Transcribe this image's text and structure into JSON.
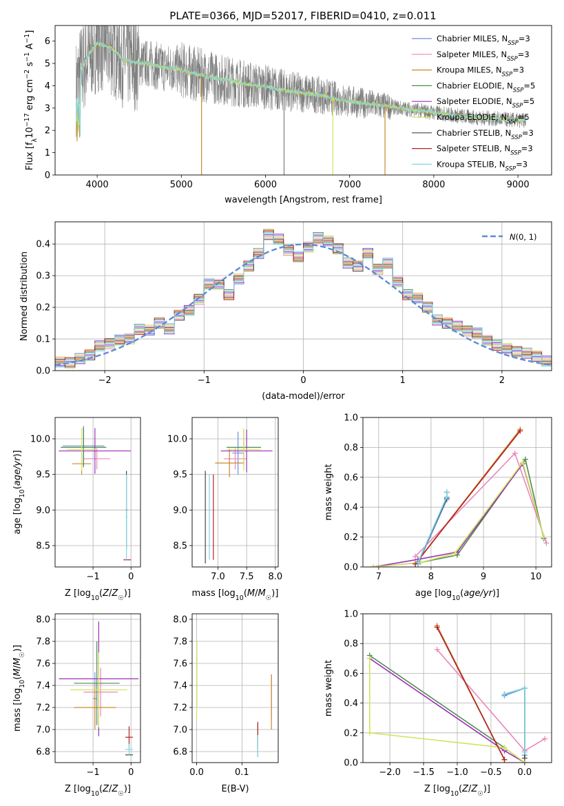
{
  "figure": {
    "title": "PLATE=0366, MJD=52017, FIBERID=0410, z=0.011",
    "series_colors": {
      "Chabrier MILES": "#6a8fd6",
      "Salpeter MILES": "#e888b9",
      "Kroupa MILES": "#c78a2a",
      "Chabrier ELODIE": "#4f8a4f",
      "Salpeter ELODIE": "#9b30b6",
      "Kroupa ELODIE": "#d4e35a",
      "Chabrier STELIB": "#444444",
      "Salpeter STELIB": "#b22222",
      "Kroupa STELIB": "#7fd6e6",
      "data": "#7f7f7f",
      "normal": "#5b8bd6"
    }
  },
  "chart_data": [
    {
      "id": "spectrum",
      "type": "line",
      "title": "PLATE=0366, MJD=52017, FIBERID=0410, z=0.011",
      "xlabel": "wavelength [Angstrom, rest frame]",
      "ylabel_parts": {
        "pre": "Flux [f",
        "sub": "λ",
        "mid": "10",
        "sup1": "−17",
        "post": " erg cm",
        "sup2": "−2",
        "post2": " s",
        "sup3": "−1",
        "post3": " A",
        "sup4": "−1",
        "end": "]"
      },
      "xlim": [
        3500,
        9400
      ],
      "ylim": [
        0,
        6.7
      ],
      "xticks": [
        4000,
        5000,
        6000,
        7000,
        8000,
        9000
      ],
      "yticks": [
        0,
        1,
        2,
        3,
        4,
        5,
        6
      ],
      "legend_position": "top-right",
      "legend": [
        {
          "name": "Chabrier MILES",
          "nssp": "3"
        },
        {
          "name": "Salpeter MILES",
          "nssp": "3"
        },
        {
          "name": "Kroupa MILES",
          "nssp": "3"
        },
        {
          "name": "Chabrier ELODIE",
          "nssp": "5"
        },
        {
          "name": "Salpeter ELODIE",
          "nssp": "5"
        },
        {
          "name": "Kroupa ELODIE",
          "nssp": "5"
        },
        {
          "name": "Chabrier STELIB",
          "nssp": "3"
        },
        {
          "name": "Salpeter STELIB",
          "nssp": "3"
        },
        {
          "name": "Kroupa STELIB",
          "nssp": "3"
        }
      ],
      "continuum": {
        "wavelength": [
          3750,
          3800,
          3900,
          4000,
          4100,
          4200,
          4300,
          4400,
          4500,
          4600,
          4700,
          4800,
          4900,
          5000,
          5200,
          5400,
          5600,
          5800,
          6000,
          6200,
          6400,
          6600,
          6800,
          7000,
          7200,
          7400,
          7600,
          7800,
          8000,
          8200,
          8400,
          8600,
          8800,
          9000,
          9100
        ],
        "flux": [
          3.9,
          4.6,
          5.4,
          5.9,
          5.8,
          5.6,
          5.2,
          5.1,
          5.0,
          5.0,
          4.9,
          4.8,
          4.8,
          4.7,
          4.5,
          4.35,
          4.2,
          4.05,
          3.95,
          3.8,
          3.7,
          3.6,
          3.45,
          3.3,
          3.2,
          3.1,
          3.0,
          2.9,
          2.8,
          2.7,
          2.6,
          2.55,
          2.5,
          2.45,
          2.45
        ]
      },
      "model_dips_to_zero": [
        5240,
        6800,
        7420
      ]
    },
    {
      "id": "residuals",
      "type": "histogram",
      "xlabel": "(data-model)/error",
      "ylabel": "Normed distribution",
      "xlim": [
        -2.5,
        2.5
      ],
      "ylim": [
        0,
        0.47
      ],
      "xticks": [
        -2,
        -1,
        0,
        1,
        2
      ],
      "yticks": [
        0.0,
        0.1,
        0.2,
        0.3,
        0.4
      ],
      "legend": "N(0,1)",
      "legend_position": "top-right",
      "bins": [
        -2.5,
        -2.4,
        -2.3,
        -2.2,
        -2.1,
        -2.0,
        -1.9,
        -1.8,
        -1.7,
        -1.6,
        -1.5,
        -1.4,
        -1.3,
        -1.2,
        -1.1,
        -1.0,
        -0.9,
        -0.8,
        -0.7,
        -0.6,
        -0.5,
        -0.4,
        -0.3,
        -0.2,
        -0.1,
        0.0,
        0.1,
        0.2,
        0.3,
        0.4,
        0.5,
        0.6,
        0.7,
        0.8,
        0.9,
        1.0,
        1.1,
        1.2,
        1.3,
        1.4,
        1.5,
        1.6,
        1.7,
        1.8,
        1.9,
        2.0,
        2.1,
        2.2,
        2.3,
        2.4,
        2.5
      ],
      "density": [
        0.028,
        0.025,
        0.038,
        0.05,
        0.078,
        0.085,
        0.098,
        0.1,
        0.13,
        0.128,
        0.15,
        0.132,
        0.175,
        0.19,
        0.225,
        0.275,
        0.272,
        0.24,
        0.29,
        0.33,
        0.37,
        0.43,
        0.415,
        0.38,
        0.36,
        0.39,
        0.42,
        0.41,
        0.385,
        0.34,
        0.33,
        0.37,
        0.32,
        0.34,
        0.28,
        0.24,
        0.23,
        0.2,
        0.16,
        0.15,
        0.14,
        0.125,
        0.12,
        0.095,
        0.08,
        0.07,
        0.06,
        0.055,
        0.045,
        0.03
      ],
      "normal_curve": "N(0,1)"
    },
    {
      "id": "age-vs-Z",
      "type": "scatter",
      "xlabel": "Z [log10(Z/Z☉)]",
      "ylabel": "age  [log10(age/yr)]",
      "xlim": [
        -2.0,
        0.25
      ],
      "ylim": [
        8.2,
        10.3
      ],
      "xticks": [
        -1,
        0
      ],
      "yticks": [
        8.5,
        9.0,
        9.5,
        10.0
      ],
      "points": [
        {
          "x": -1.25,
          "y": 9.9,
          "xerr": 0.55,
          "yerr": 0.28,
          "series": "Chabrier MILES"
        },
        {
          "x": -0.9,
          "y": 9.72,
          "xerr": 0.35,
          "yerr": 0.15,
          "series": "Salpeter MILES"
        },
        {
          "x": -1.3,
          "y": 9.65,
          "xerr": 0.25,
          "yerr": 0.15,
          "series": "Kroupa MILES"
        },
        {
          "x": -1.25,
          "y": 9.88,
          "xerr": 0.6,
          "yerr": 0.28,
          "series": "Chabrier ELODIE"
        },
        {
          "x": -0.95,
          "y": 9.83,
          "xerr": 0.95,
          "yerr": 0.32,
          "series": "Salpeter ELODIE"
        },
        {
          "x": -1.3,
          "y": 9.85,
          "xerr": 0.4,
          "yerr": 0.3,
          "series": "Kroupa ELODIE"
        },
        {
          "x": -0.12,
          "y": 9.0,
          "xerr": 0.02,
          "yerr": 0.55,
          "series": "Chabrier STELIB"
        },
        {
          "x": -0.1,
          "y": 8.3,
          "xerr": 0.1,
          "yerr": 0.0,
          "series": "Salpeter STELIB"
        },
        {
          "x": -0.12,
          "y": 8.9,
          "xerr": 0.02,
          "yerr": 0.6,
          "series": "Kroupa STELIB"
        }
      ]
    },
    {
      "id": "age-vs-mass",
      "type": "scatter",
      "xlabel": "mass [log10(M/M☉)]",
      "ylabel": "",
      "xlim": [
        6.55,
        8.05
      ],
      "ylim": [
        8.2,
        10.3
      ],
      "xticks": [
        7.0,
        7.5,
        8.0
      ],
      "yticks": [
        8.5,
        9.0,
        9.5,
        10.0
      ],
      "points": [
        {
          "x": 7.35,
          "y": 9.8,
          "xerr": 0.1,
          "yerr": 0.3,
          "series": "Chabrier MILES"
        },
        {
          "x": 7.3,
          "y": 9.72,
          "xerr": 0.2,
          "yerr": 0.15,
          "series": "Salpeter MILES"
        },
        {
          "x": 7.2,
          "y": 9.66,
          "xerr": 0.25,
          "yerr": 0.2,
          "series": "Kroupa MILES"
        },
        {
          "x": 7.45,
          "y": 9.88,
          "xerr": 0.3,
          "yerr": 0.25,
          "series": "Chabrier ELODIE"
        },
        {
          "x": 7.5,
          "y": 9.83,
          "xerr": 0.45,
          "yerr": 0.3,
          "series": "Salpeter ELODIE"
        },
        {
          "x": 7.45,
          "y": 9.85,
          "xerr": 0.3,
          "yerr": 0.3,
          "series": "Kroupa ELODIE"
        },
        {
          "x": 6.78,
          "y": 8.9,
          "xerr": 0.0,
          "yerr": 0.65,
          "series": "Chabrier STELIB"
        },
        {
          "x": 6.92,
          "y": 8.9,
          "xerr": 0.0,
          "yerr": 0.6,
          "series": "Salpeter STELIB"
        },
        {
          "x": 6.85,
          "y": 8.9,
          "xerr": 0.0,
          "yerr": 0.6,
          "series": "Kroupa STELIB"
        }
      ]
    },
    {
      "id": "weight-vs-age",
      "type": "line",
      "xlabel": "age  [log10(age/yr)]",
      "ylabel": "mass weight",
      "xlim": [
        6.7,
        10.3
      ],
      "ylim": [
        0.0,
        1.0
      ],
      "xticks": [
        7,
        8,
        9,
        10
      ],
      "yticks": [
        0.0,
        0.2,
        0.4,
        0.6,
        0.8,
        1.0
      ],
      "grid": true,
      "series": [
        {
          "name": "Chabrier MILES",
          "x": [
            7.75,
            8.3,
            8.3
          ],
          "y": [
            0.02,
            0.45,
            0.5
          ]
        },
        {
          "name": "Salpeter MILES",
          "x": [
            7.7,
            9.6,
            10.2
          ],
          "y": [
            0.07,
            0.76,
            0.16
          ]
        },
        {
          "name": "Kroupa MILES",
          "x": [
            7.7,
            9.7
          ],
          "y": [
            0.02,
            0.92
          ]
        },
        {
          "name": "Chabrier ELODIE",
          "x": [
            6.9,
            7.8,
            8.5,
            9.8,
            10.15
          ],
          "y": [
            0.0,
            0.03,
            0.08,
            0.72,
            0.19
          ]
        },
        {
          "name": "Salpeter ELODIE",
          "x": [
            6.9,
            7.75,
            8.5,
            9.75,
            10.15
          ],
          "y": [
            0.0,
            0.05,
            0.1,
            0.69,
            0.2
          ]
        },
        {
          "name": "Kroupa ELODIE",
          "x": [
            6.9,
            7.8,
            8.45,
            9.75,
            10.15
          ],
          "y": [
            0.0,
            0.03,
            0.09,
            0.7,
            0.2
          ]
        },
        {
          "name": "Chabrier STELIB",
          "x": [
            7.75,
            8.3,
            8.3
          ],
          "y": [
            0.03,
            0.46,
            0.5
          ]
        },
        {
          "name": "Salpeter STELIB",
          "x": [
            7.7,
            9.7
          ],
          "y": [
            0.02,
            0.91
          ]
        },
        {
          "name": "Kroupa STELIB",
          "x": [
            7.75,
            8.3,
            8.3
          ],
          "y": [
            0.03,
            0.47,
            0.5
          ]
        }
      ]
    },
    {
      "id": "mass-vs-Z",
      "type": "scatter",
      "xlabel": "Z [log10(Z/Z☉)]",
      "ylabel": "mass [log10(M/M☉)]",
      "xlim": [
        -2.0,
        0.25
      ],
      "ylim": [
        6.7,
        8.05
      ],
      "xticks": [
        -1,
        0
      ],
      "yticks": [
        6.8,
        7.0,
        7.2,
        7.4,
        7.6,
        7.8,
        8.0
      ],
      "points": [
        {
          "x": -0.95,
          "y": 7.28,
          "xerr": 0.05,
          "yerr": 0.24,
          "series": "Chabrier MILES"
        },
        {
          "x": -0.8,
          "y": 7.34,
          "xerr": 0.45,
          "yerr": 0.22,
          "series": "Salpeter MILES"
        },
        {
          "x": -0.95,
          "y": 7.2,
          "xerr": 0.55,
          "yerr": 0.2,
          "series": "Kroupa MILES"
        },
        {
          "x": -0.9,
          "y": 7.42,
          "xerr": 0.6,
          "yerr": 0.38,
          "series": "Chabrier ELODIE"
        },
        {
          "x": -0.85,
          "y": 7.46,
          "xerr": 1.05,
          "yerr": 0.52,
          "series": "Salpeter ELODIE"
        },
        {
          "x": -0.85,
          "y": 7.36,
          "xerr": 0.75,
          "yerr": 0.34,
          "series": "Kroupa ELODIE"
        },
        {
          "x": -0.05,
          "y": 6.77,
          "xerr": 0.1,
          "yerr": 0.0,
          "series": "Chabrier STELIB"
        },
        {
          "x": -0.05,
          "y": 6.93,
          "xerr": 0.1,
          "yerr": 0.1,
          "series": "Salpeter STELIB"
        },
        {
          "x": -0.05,
          "y": 6.82,
          "xerr": 0.1,
          "yerr": 0.05,
          "series": "Kroupa STELIB"
        }
      ]
    },
    {
      "id": "mass-vs-ebv",
      "type": "scatter",
      "xlabel": "E(B-V)",
      "ylabel": "",
      "xlim": [
        -0.01,
        0.18
      ],
      "ylim": [
        6.7,
        8.05
      ],
      "xticks": [
        0.0,
        0.1
      ],
      "yticks": [
        6.8,
        7.0,
        7.2,
        7.4,
        7.6,
        7.8,
        8.0
      ],
      "points": [
        {
          "x": 0.165,
          "y": 7.3,
          "xerr": 0.0,
          "yerr": 0.2,
          "series": "Salpeter MILES"
        },
        {
          "x": 0.165,
          "y": 7.25,
          "xerr": 0.0,
          "yerr": 0.25,
          "series": "Kroupa MILES"
        },
        {
          "x": 0.0,
          "y": 7.5,
          "xerr": 0.0,
          "yerr": 0.3,
          "series": "Salpeter ELODIE"
        },
        {
          "x": 0.0,
          "y": 7.45,
          "xerr": 0.0,
          "yerr": 0.35,
          "series": "Kroupa ELODIE"
        },
        {
          "x": 0.135,
          "y": 6.9,
          "xerr": 0.0,
          "yerr": 0.15,
          "series": "Chabrier STELIB"
        },
        {
          "x": 0.135,
          "y": 6.95,
          "xerr": 0.0,
          "yerr": 0.12,
          "series": "Salpeter STELIB"
        },
        {
          "x": 0.135,
          "y": 6.85,
          "xerr": 0.0,
          "yerr": 0.1,
          "series": "Kroupa STELIB"
        }
      ]
    },
    {
      "id": "weight-vs-Z",
      "type": "line",
      "xlabel": "Z [log10(Z/Z☉)]",
      "ylabel": "mass weight",
      "xlim": [
        -2.4,
        0.4
      ],
      "ylim": [
        0.0,
        1.0
      ],
      "xticks": [
        -2.0,
        -1.5,
        -1.0,
        -0.5,
        0.0
      ],
      "yticks": [
        0.0,
        0.2,
        0.4,
        0.6,
        0.8,
        1.0
      ],
      "grid": true,
      "series": [
        {
          "name": "Chabrier MILES",
          "x": [
            -0.3,
            0.0,
            0.0
          ],
          "y": [
            0.45,
            0.5,
            0.05
          ]
        },
        {
          "name": "Salpeter MILES",
          "x": [
            -1.3,
            0.0,
            0.3
          ],
          "y": [
            0.76,
            0.08,
            0.16
          ]
        },
        {
          "name": "Kroupa MILES",
          "x": [
            -1.3,
            -0.3
          ],
          "y": [
            0.92,
            0.02
          ]
        },
        {
          "name": "Chabrier ELODIE",
          "x": [
            -2.3,
            -0.3,
            0.0
          ],
          "y": [
            0.72,
            0.1,
            0.0
          ]
        },
        {
          "name": "Salpeter ELODIE",
          "x": [
            -2.3,
            -0.3,
            0.0
          ],
          "y": [
            0.7,
            0.08,
            0.0
          ]
        },
        {
          "name": "Kroupa ELODIE",
          "x": [
            -2.3,
            -2.3,
            -0.3,
            0.0
          ],
          "y": [
            0.7,
            0.2,
            0.1,
            0.0
          ]
        },
        {
          "name": "Chabrier STELIB",
          "x": [
            -0.3,
            0.0,
            0.0
          ],
          "y": [
            0.46,
            0.5,
            0.03
          ]
        },
        {
          "name": "Salpeter STELIB",
          "x": [
            -1.3,
            -0.3
          ],
          "y": [
            0.91,
            0.02
          ]
        },
        {
          "name": "Kroupa STELIB",
          "x": [
            -0.3,
            0.0,
            0.0
          ],
          "y": [
            0.46,
            0.5,
            0.07
          ]
        }
      ]
    }
  ]
}
